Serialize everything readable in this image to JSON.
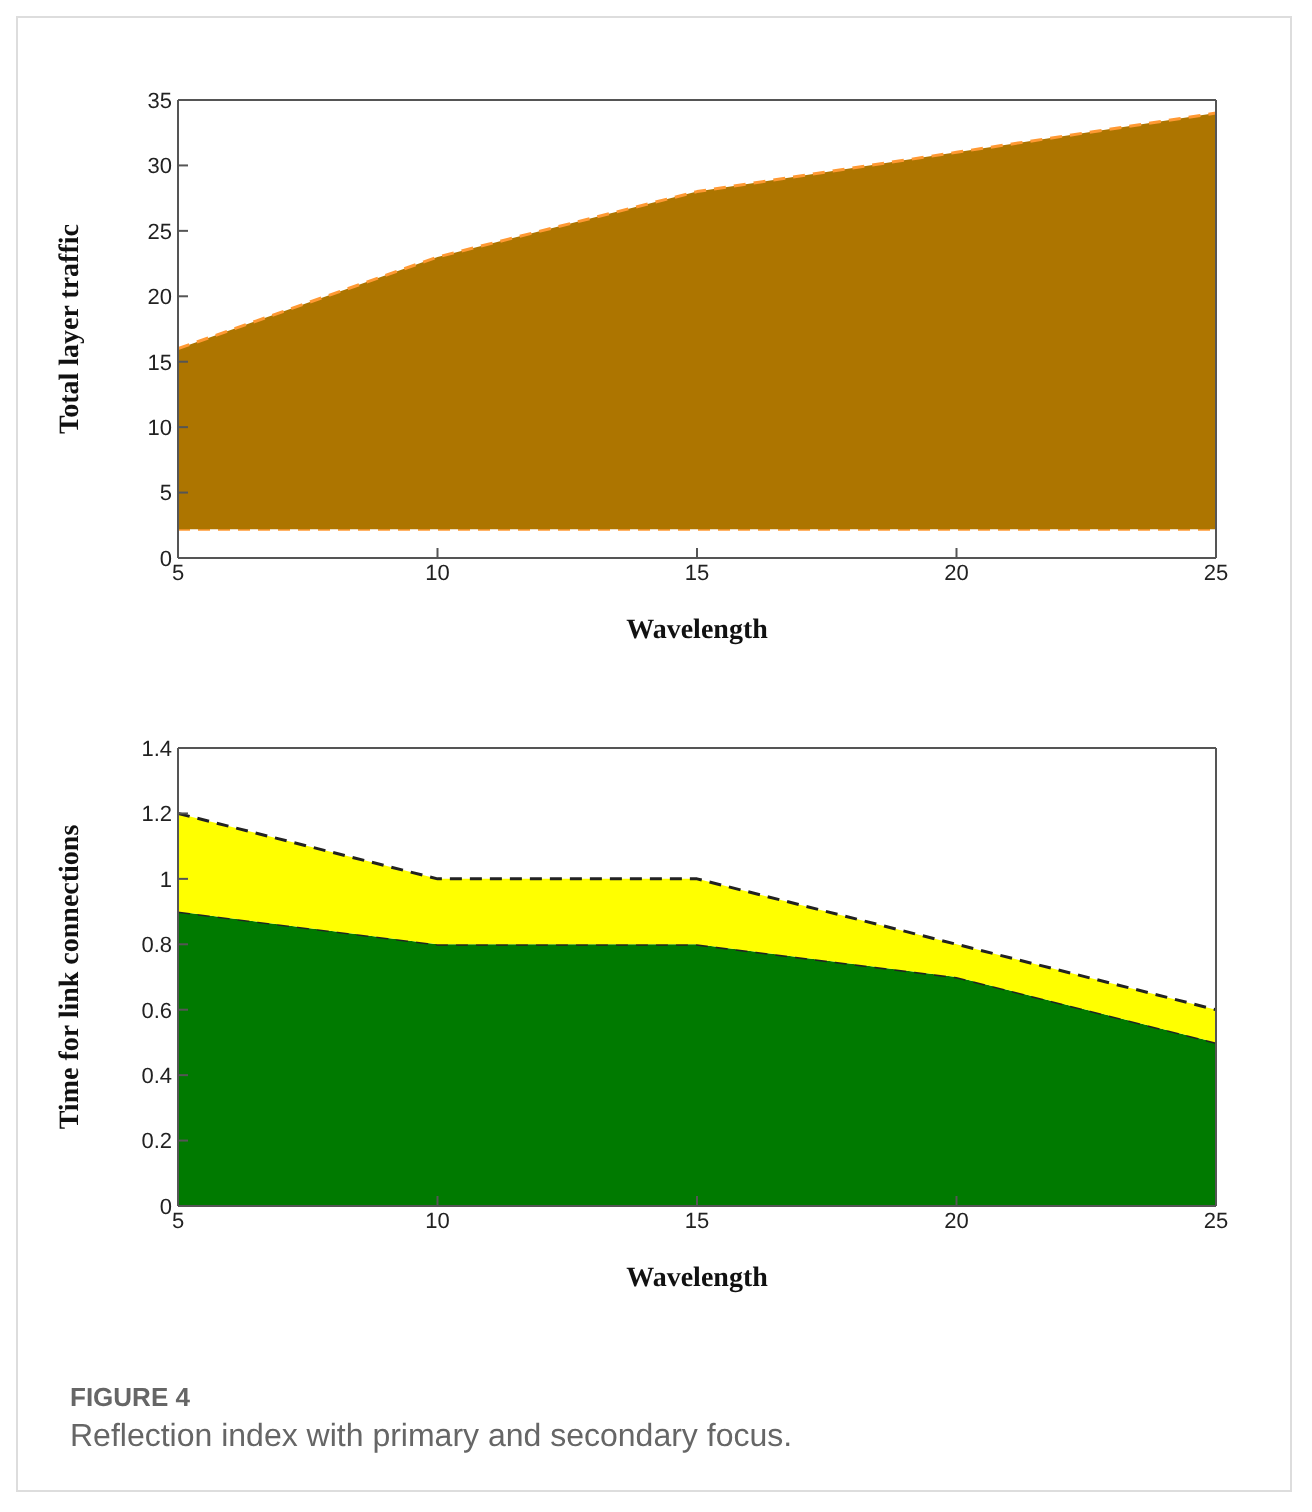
{
  "chart_data": [
    {
      "type": "area",
      "stacked": true,
      "xlabel": "Wavelength",
      "ylabel": "Total layer traffic",
      "x": [
        5,
        10,
        15,
        20,
        25
      ],
      "series": [
        {
          "color": "#ffffff",
          "values": [
            2.2,
            2.2,
            2.2,
            2.2,
            2.2
          ]
        },
        {
          "color": "#ad7500",
          "values": [
            13.8,
            20.8,
            25.8,
            28.8,
            31.8
          ]
        }
      ],
      "xlim": [
        5,
        25
      ],
      "xticks": [
        5,
        10,
        15,
        20,
        25
      ],
      "ylim": [
        0,
        35
      ],
      "yticks": [
        0,
        5,
        10,
        15,
        20,
        25,
        30,
        35
      ],
      "line_style": "dashed",
      "legend": false,
      "grid": false
    },
    {
      "type": "area",
      "stacked": true,
      "xlabel": "Wavelength",
      "ylabel": "Time for link connections",
      "x": [
        5,
        10,
        15,
        20,
        25
      ],
      "series": [
        {
          "color": "#007a00",
          "values": [
            0.9,
            0.8,
            0.8,
            0.7,
            0.5
          ]
        },
        {
          "color": "#ffff00",
          "values": [
            0.3,
            0.2,
            0.2,
            0.1,
            0.1
          ]
        }
      ],
      "xlim": [
        5,
        25
      ],
      "xticks": [
        5,
        10,
        15,
        20,
        25
      ],
      "ylim": [
        0,
        1.4
      ],
      "yticks": [
        0,
        0.2,
        0.4,
        0.6,
        0.8,
        1,
        1.2,
        1.4
      ],
      "line_style": "dashed",
      "legend": false,
      "grid": false,
      "annotations": [
        "FIGURE 4",
        "Reflection index with primary and secondary focus."
      ]
    }
  ]
}
